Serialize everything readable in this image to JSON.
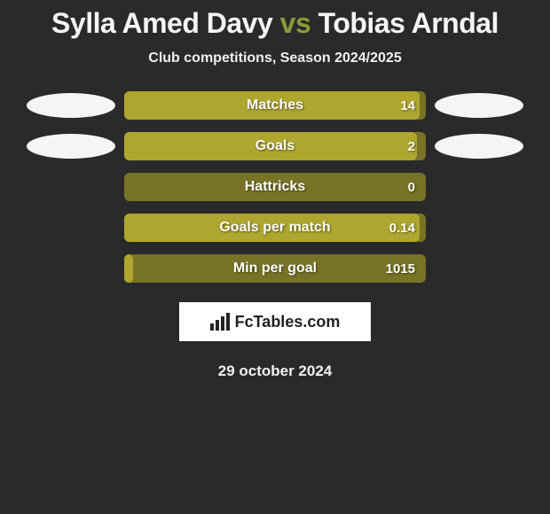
{
  "title": {
    "player1": "Sylla Amed Davy",
    "vs": "vs",
    "player2": "Tobias Arndal"
  },
  "subtitle": "Club competitions, Season 2024/2025",
  "colors": {
    "bar_fill": "#aea62e",
    "bar_bg": "#787326",
    "ellipse_left": "#f5f5f5",
    "ellipse_right": "#f5f5f5",
    "player1_text": "#f5f5f5",
    "player2_text": "#f5f5f5",
    "vs_text": "#8a9a3a"
  },
  "stats": [
    {
      "label": "Matches",
      "value": "14",
      "fill_pct": 98,
      "left_ellipse": true,
      "right_ellipse": true
    },
    {
      "label": "Goals",
      "value": "2",
      "fill_pct": 97,
      "left_ellipse": true,
      "right_ellipse": true
    },
    {
      "label": "Hattricks",
      "value": "0",
      "fill_pct": 0,
      "left_ellipse": false,
      "right_ellipse": false
    },
    {
      "label": "Goals per match",
      "value": "0.14",
      "fill_pct": 98,
      "left_ellipse": false,
      "right_ellipse": false
    },
    {
      "label": "Min per goal",
      "value": "1015",
      "fill_pct": 3,
      "left_ellipse": false,
      "right_ellipse": false
    }
  ],
  "logo": {
    "text": "FcTables.com"
  },
  "date": "29 october 2024"
}
